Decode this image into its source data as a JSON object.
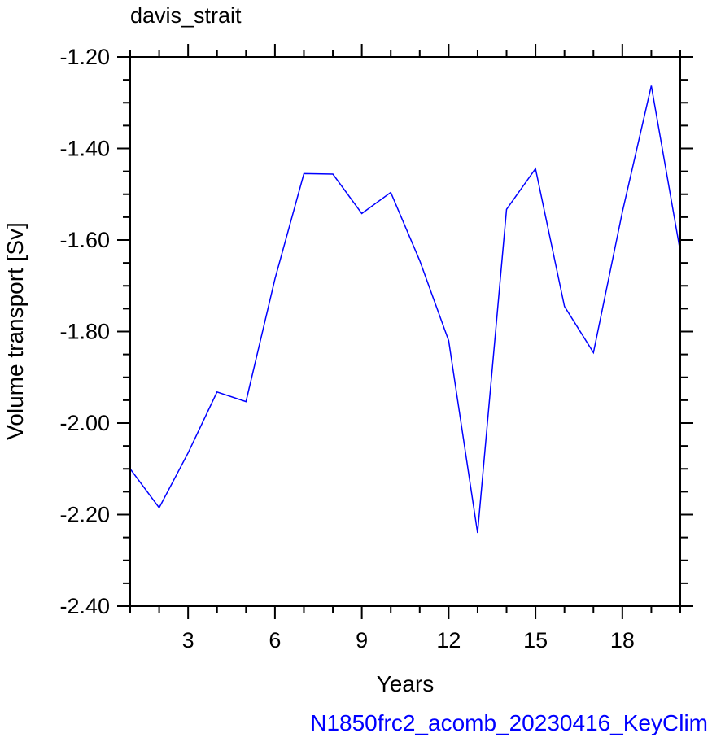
{
  "chart_data": {
    "type": "line",
    "title": "davis_strait",
    "xlabel": "Years",
    "ylabel": "Volume transport [Sv]",
    "footer": "N1850frc2_acomb_20230416_KeyClim",
    "xlim": [
      1,
      20
    ],
    "ylim": [
      -2.4,
      -1.2
    ],
    "xticks": [
      3,
      6,
      9,
      12,
      15,
      18
    ],
    "xtick_labels": [
      "3",
      "6",
      "9",
      "12",
      "15",
      "18"
    ],
    "yticks": [
      -1.2,
      -1.4,
      -1.6,
      -1.8,
      -2.0,
      -2.2,
      -2.4
    ],
    "ytick_labels": [
      "-1.20",
      "-1.40",
      "-1.60",
      "-1.80",
      "-2.00",
      "-2.20",
      "-2.40"
    ],
    "grid": false,
    "series": [
      {
        "color": "#0000ff",
        "x": [
          1,
          2,
          3,
          4,
          5,
          6,
          7,
          8,
          9,
          10,
          11,
          12,
          13,
          14,
          15,
          16,
          17,
          18,
          19,
          20
        ],
        "values": [
          -2.1,
          -2.185,
          -2.065,
          -1.932,
          -1.953,
          -1.685,
          -1.455,
          -1.456,
          -1.542,
          -1.496,
          -1.645,
          -1.82,
          -2.24,
          -1.533,
          -1.444,
          -1.745,
          -1.846,
          -1.539,
          -1.263,
          -1.625
        ]
      }
    ],
    "colors": {
      "line": "#0000ff",
      "footer": "#0000ff",
      "axes": "#000000"
    }
  }
}
